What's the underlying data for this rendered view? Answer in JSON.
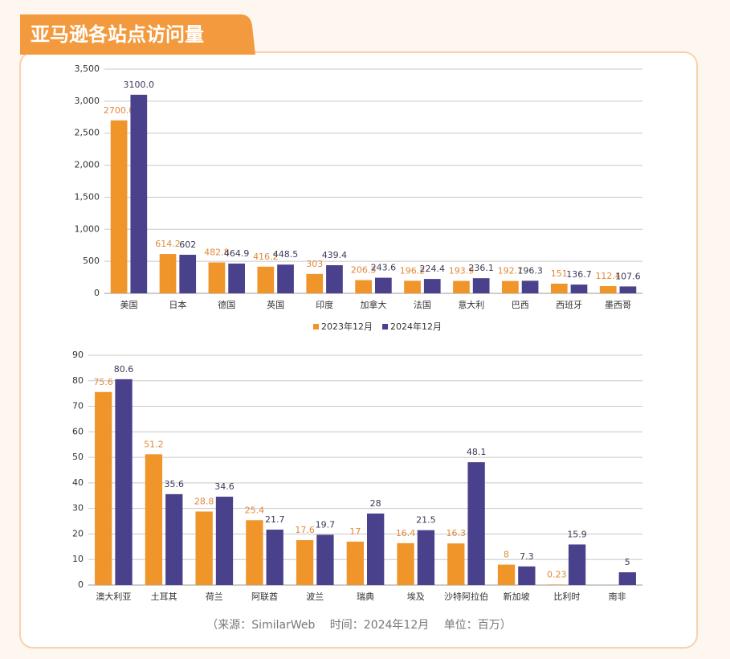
{
  "header": {
    "title": "亚马逊各站点访问量"
  },
  "chart_data": [
    {
      "type": "bar",
      "categories": [
        "美国",
        "日本",
        "德国",
        "英国",
        "印度",
        "加拿大",
        "法国",
        "意大利",
        "巴西",
        "西班牙",
        "墨西哥"
      ],
      "series": [
        {
          "name": "2023年12月",
          "color": "#f0952a",
          "values": [
            2700,
            614.2,
            482.8,
            416.2,
            303,
            206.3,
            196.2,
            193.9,
            192.7,
            151,
            112.4
          ],
          "value_labels": [
            "2700.0",
            null,
            null,
            null,
            null,
            null,
            null,
            null,
            null,
            null,
            null
          ]
        },
        {
          "name": "2024年12月",
          "color": "#4a418c",
          "values": [
            3100,
            602,
            464.9,
            448.5,
            439.4,
            243.6,
            224.4,
            236.1,
            196.3,
            136.7,
            107.6
          ],
          "value_labels": [
            "3100.0",
            null,
            null,
            null,
            null,
            null,
            null,
            null,
            null,
            null,
            null
          ]
        }
      ],
      "ylim": [
        0,
        3500
      ],
      "yticks": [
        0,
        500,
        {
          "value": 1000,
          "label": "1,000"
        },
        {
          "value": 1500,
          "label": "1,500"
        },
        {
          "value": 2000,
          "label": "2,000"
        },
        {
          "value": 2500,
          "label": "2,500"
        },
        {
          "value": 3000,
          "label": "3,000"
        },
        {
          "value": 3500,
          "label": "3,500"
        }
      ],
      "grid": true,
      "legend": "bottom"
    },
    {
      "type": "bar",
      "categories": [
        "澳大利亚",
        "土耳其",
        "荷兰",
        "阿联酋",
        "波兰",
        "瑞典",
        "埃及",
        "沙特阿拉伯",
        "新加坡",
        "比利时",
        "南非"
      ],
      "series": [
        {
          "color": "#f0952a",
          "values": [
            75.6,
            51.2,
            28.8,
            25.4,
            17.6,
            17,
            16.4,
            16.3,
            8,
            0.23,
            null
          ]
        },
        {
          "color": "#4a418c",
          "values": [
            80.6,
            35.6,
            34.6,
            21.7,
            19.7,
            28,
            21.5,
            48.1,
            7.3,
            15.9,
            5
          ]
        }
      ],
      "ylim": [
        0,
        90
      ],
      "yticks": [
        0,
        10,
        20,
        30,
        40,
        50,
        60,
        70,
        80,
        90
      ],
      "grid": true
    }
  ],
  "footer": {
    "text": "（来源：SimilarWeb　 时间：2024年12月　 单位：百万）"
  }
}
